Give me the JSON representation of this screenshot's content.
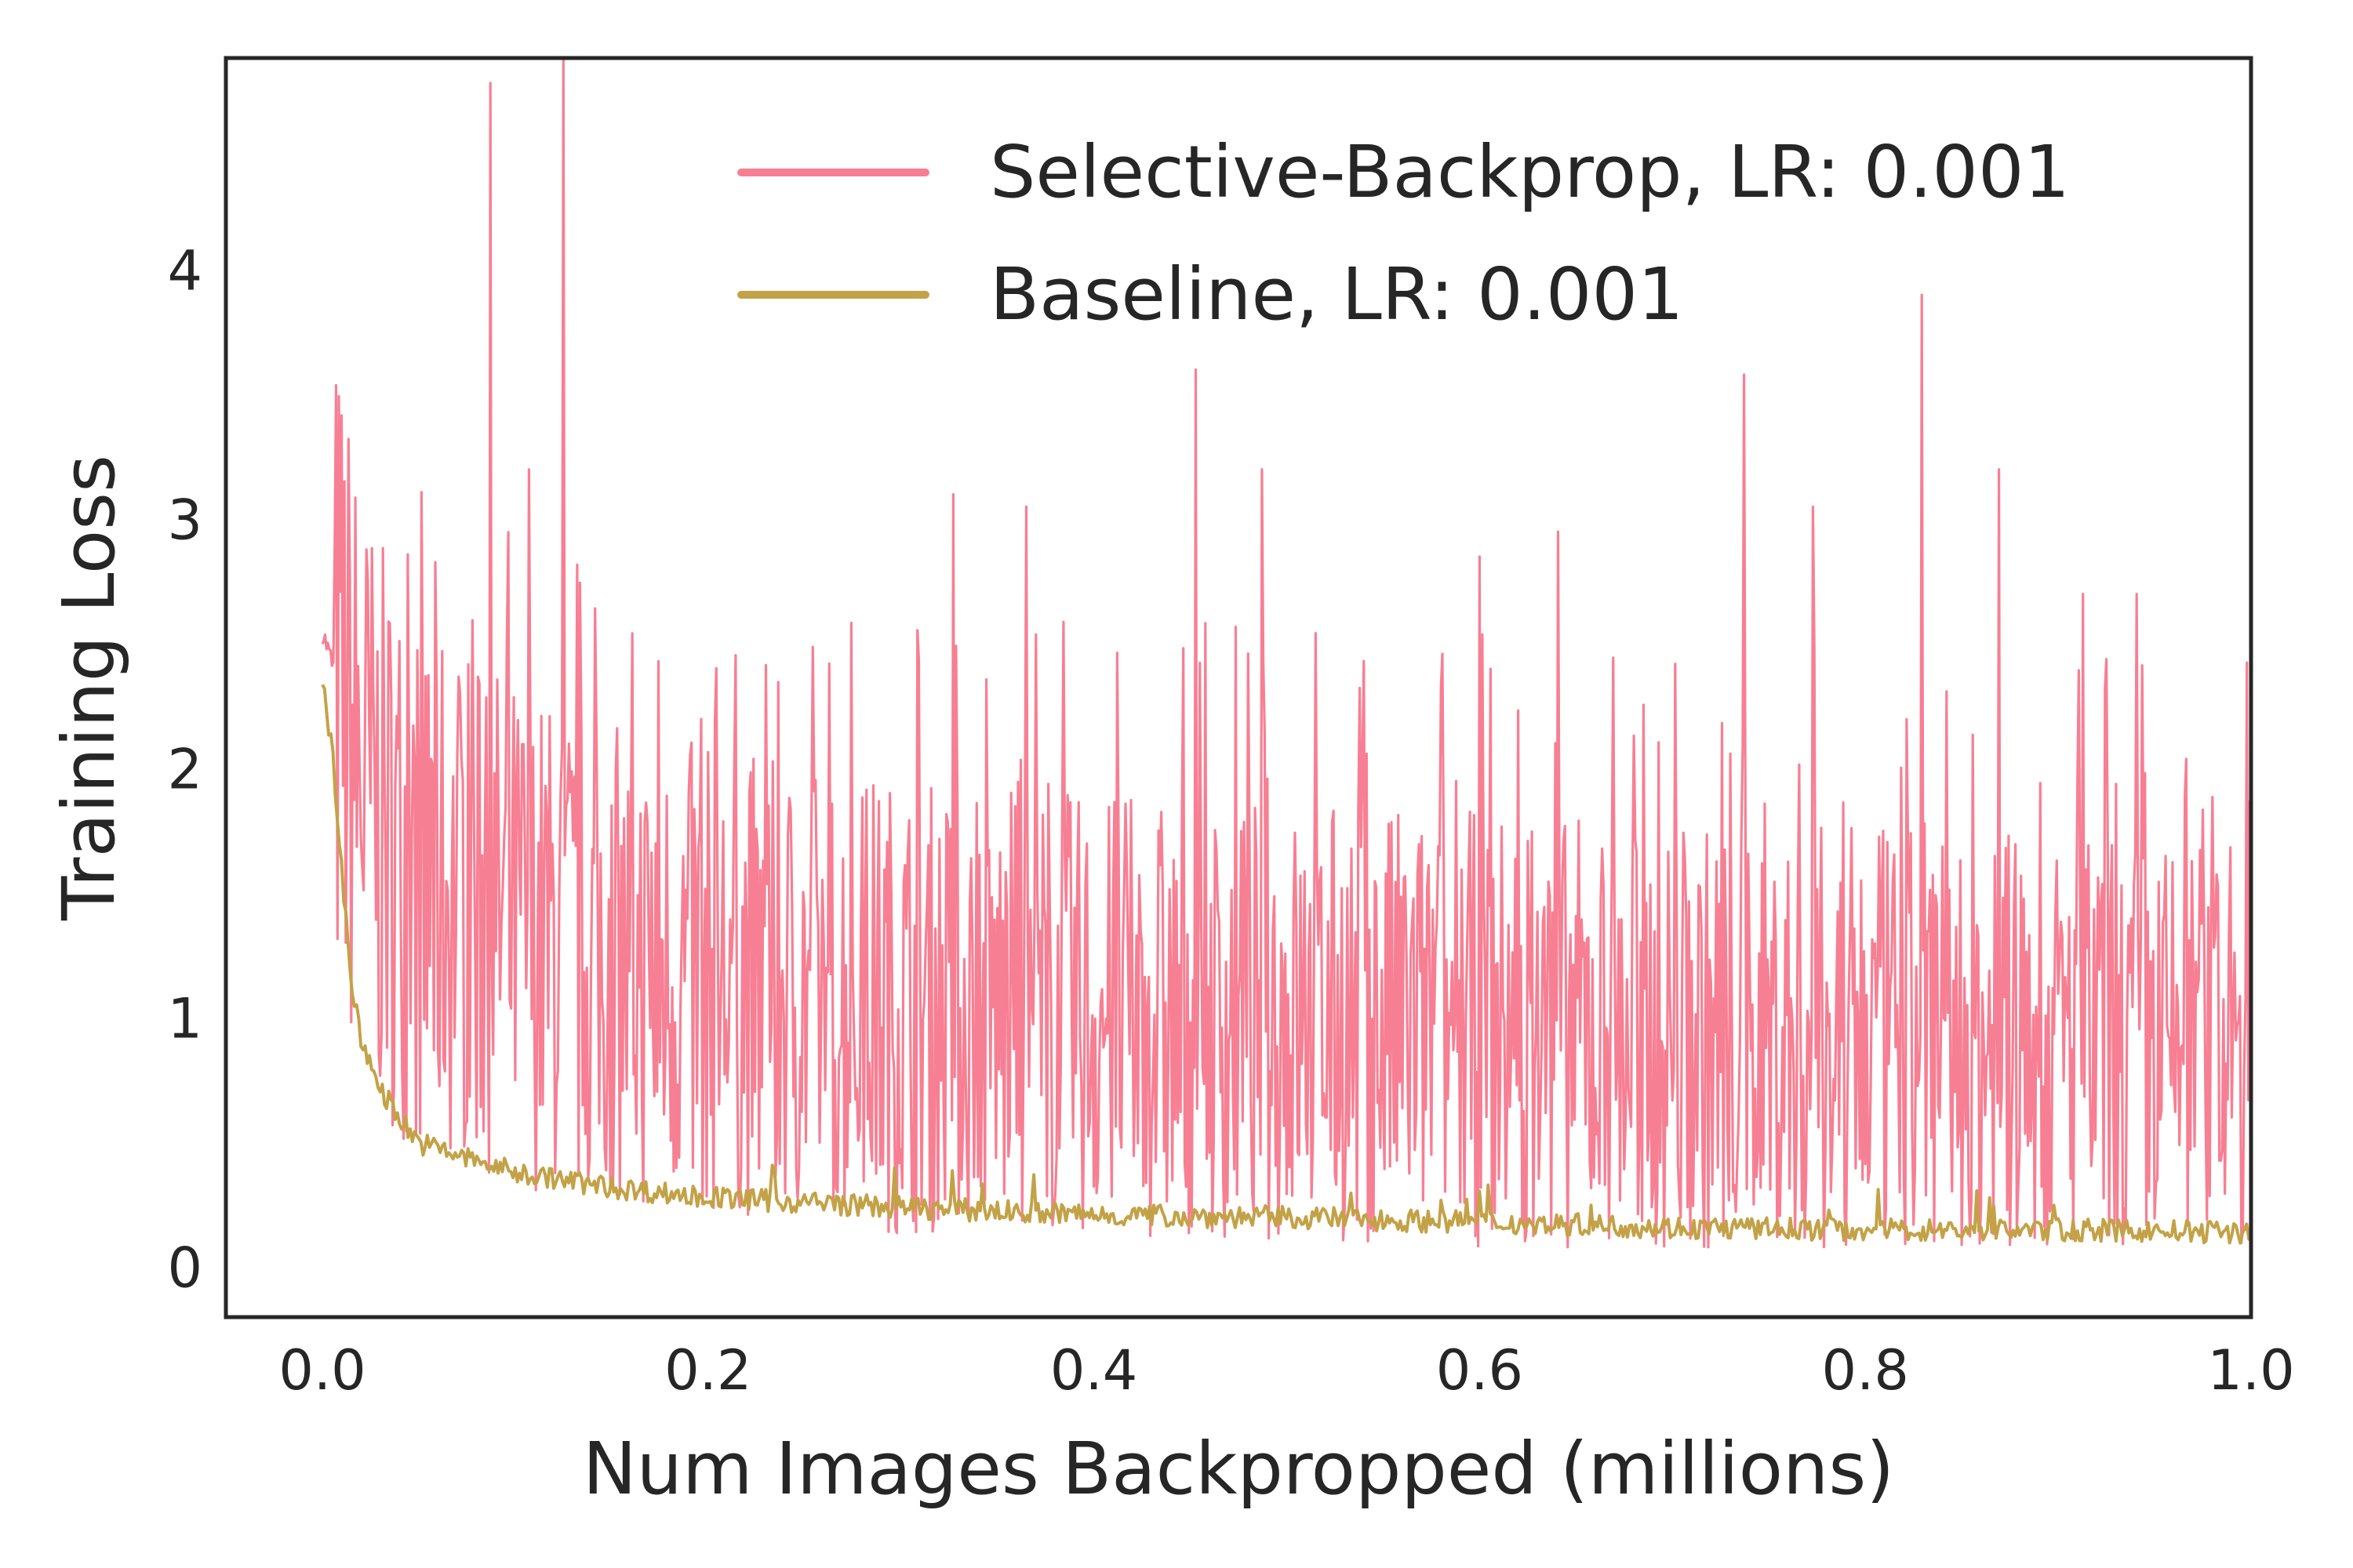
{
  "chart_data": {
    "type": "line",
    "title": "",
    "xlabel": "Num Images Backpropped (millions)",
    "ylabel": "Training Loss",
    "xlim": [
      -0.05,
      1.0
    ],
    "ylim": [
      -0.2,
      4.85
    ],
    "xticks": [
      0.0,
      0.2,
      0.4,
      0.6,
      0.8,
      1.0
    ],
    "xtick_labels": [
      "0.0",
      "0.2",
      "0.4",
      "0.6",
      "0.8",
      "1.0"
    ],
    "yticks": [
      0,
      1,
      2,
      3,
      4
    ],
    "ytick_labels": [
      "0",
      "1",
      "2",
      "3",
      "4"
    ],
    "grid": false,
    "legend_position": "top-right",
    "series": [
      {
        "name": "Selective-Backprop, LR: 0.001",
        "color": "#f77f93",
        "x": [
          0.0,
          0.01,
          0.02,
          0.03,
          0.05,
          0.08,
          0.1,
          0.15,
          0.2,
          0.3,
          0.4,
          0.5,
          0.6,
          0.7,
          0.8,
          0.9,
          1.0
        ],
        "y": [
          2.55,
          2.3,
          1.95,
          1.75,
          1.55,
          1.45,
          1.35,
          1.2,
          1.15,
          1.05,
          1.0,
          0.98,
          0.95,
          0.92,
          0.9,
          0.88,
          0.85
        ],
        "spikes": [
          {
            "x": 0.087,
            "y": 4.75
          },
          {
            "x": 0.125,
            "y": 4.85
          },
          {
            "x": 0.453,
            "y": 3.6
          },
          {
            "x": 0.829,
            "y": 3.9
          },
          {
            "x": 0.737,
            "y": 3.58
          },
          {
            "x": 0.869,
            "y": 3.2
          },
          {
            "x": 0.487,
            "y": 3.2
          },
          {
            "x": 0.107,
            "y": 3.2
          },
          {
            "x": 0.327,
            "y": 3.1
          },
          {
            "x": 0.365,
            "y": 3.05
          },
          {
            "x": 0.773,
            "y": 3.05
          },
          {
            "x": 0.641,
            "y": 2.95
          },
          {
            "x": 0.913,
            "y": 2.7
          },
          {
            "x": 0.941,
            "y": 2.7
          },
          {
            "x": 0.6,
            "y": 2.85
          }
        ]
      },
      {
        "name": "Baseline, LR: 0.001",
        "color": "#c3a247",
        "x": [
          0.0,
          0.005,
          0.01,
          0.015,
          0.02,
          0.025,
          0.03,
          0.04,
          0.05,
          0.07,
          0.1,
          0.15,
          0.2,
          0.3,
          0.4,
          0.5,
          0.6,
          0.7,
          0.8,
          0.9,
          1.0
        ],
        "y": [
          2.33,
          2.1,
          1.6,
          1.15,
          0.9,
          0.82,
          0.72,
          0.6,
          0.5,
          0.45,
          0.38,
          0.32,
          0.28,
          0.24,
          0.21,
          0.2,
          0.18,
          0.16,
          0.15,
          0.15,
          0.14
        ]
      }
    ]
  }
}
